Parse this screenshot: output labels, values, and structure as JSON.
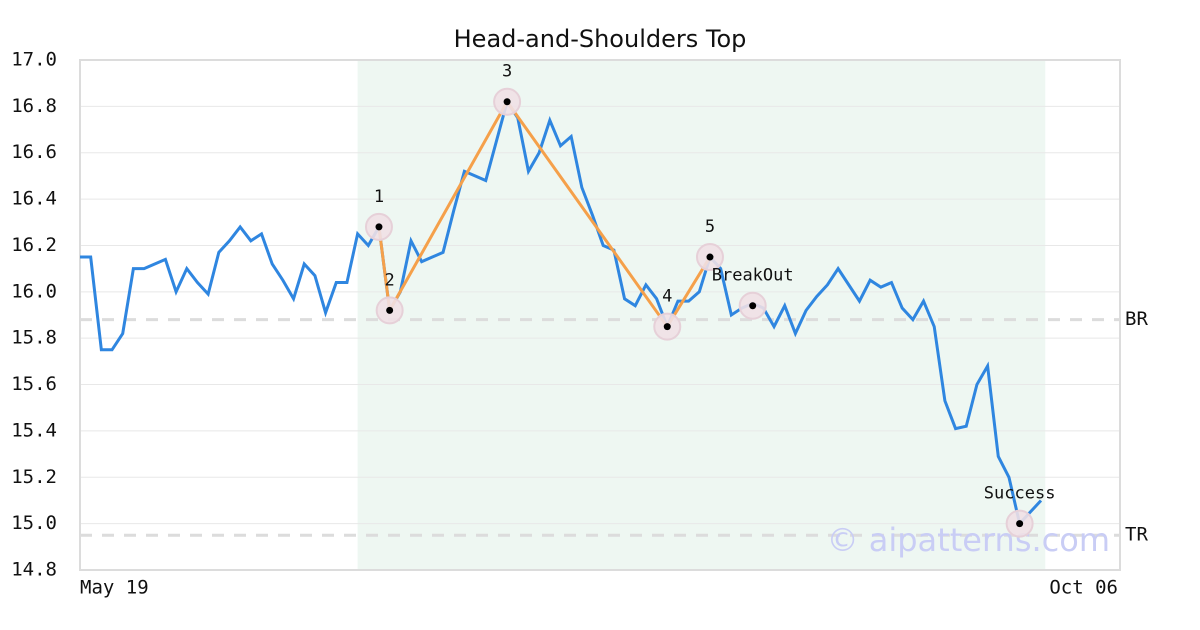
{
  "chart_data": {
    "type": "line",
    "title": "Head-and-Shoulders Top",
    "x": [
      0,
      1,
      2,
      3,
      4,
      5,
      6,
      7,
      8,
      9,
      10,
      11,
      12,
      13,
      14,
      15,
      16,
      17,
      18,
      19,
      20,
      21,
      22,
      23,
      24,
      25,
      26,
      27,
      28,
      29,
      30,
      31,
      32,
      33,
      34,
      35,
      36,
      37,
      38,
      39,
      40,
      41,
      42,
      43,
      44,
      45,
      46,
      47,
      48,
      49,
      50,
      51,
      52,
      53,
      54,
      55,
      56,
      57,
      58,
      59,
      60,
      61,
      62,
      63,
      64,
      65,
      66,
      67,
      68,
      69,
      70,
      71,
      72,
      73,
      74,
      75,
      76,
      77,
      78,
      79,
      80,
      81,
      82,
      83,
      84,
      85,
      86,
      87,
      88,
      89,
      90
    ],
    "series": [
      {
        "color": "#2f86e0",
        "values": [
          16.15,
          16.15,
          15.75,
          15.75,
          15.82,
          16.1,
          16.1,
          16.12,
          16.14,
          16.0,
          16.1,
          16.04,
          15.99,
          16.17,
          16.22,
          16.28,
          16.22,
          16.25,
          16.12,
          16.05,
          15.97,
          16.12,
          16.07,
          15.91,
          16.04,
          16.04,
          16.25,
          16.2,
          16.28,
          15.92,
          16.0,
          16.22,
          16.13,
          16.15,
          16.17,
          16.35,
          16.52,
          16.5,
          16.48,
          16.65,
          16.82,
          16.75,
          16.52,
          16.6,
          16.74,
          16.63,
          16.67,
          16.45,
          16.33,
          16.2,
          16.18,
          15.97,
          15.94,
          16.03,
          15.97,
          15.85,
          15.96,
          15.96,
          16.0,
          16.15,
          16.1,
          15.9,
          15.93,
          15.95,
          15.93,
          15.85,
          15.94,
          15.82,
          15.92,
          15.98,
          16.03,
          16.1,
          16.03,
          15.96,
          16.05,
          16.02,
          16.04,
          15.93,
          15.88,
          15.96,
          15.85,
          15.53,
          15.41,
          15.42,
          15.6,
          15.68,
          15.29,
          15.2,
          15.0,
          15.05,
          15.1
        ]
      }
    ],
    "pattern": {
      "color": "#f5a04a",
      "x": [
        28,
        29,
        40,
        55,
        59
      ],
      "values": [
        16.28,
        15.92,
        16.82,
        15.85,
        16.15
      ],
      "labels": [
        "1",
        "2",
        "3",
        "4",
        "5"
      ]
    },
    "signals": {
      "x": [
        63,
        88
      ],
      "values": [
        15.94,
        15.0
      ],
      "labels": [
        "BreakOut",
        "Success"
      ]
    },
    "levels": [
      {
        "label": "BR",
        "value": 15.88
      },
      {
        "label": "TR",
        "value": 14.95
      }
    ],
    "highlight": [
      26,
      90.4
    ],
    "watermark": "© aipatterns.com",
    "xlim": [
      0,
      97.4
    ],
    "xticks": [
      {
        "value": 0,
        "label": "May 19"
      },
      {
        "value": 97.4,
        "label": "Oct 06"
      }
    ],
    "ylim": [
      14.8,
      17.0
    ],
    "yticks": [
      14.8,
      {
        "value": 15.0,
        "label": "15.0"
      },
      15.2,
      15.4,
      15.6,
      15.8,
      {
        "value": 16.0,
        "label": "16.0"
      },
      16.2,
      16.4,
      16.6,
      16.8,
      {
        "value": 17.0,
        "label": "17.0"
      }
    ],
    "grid": true
  }
}
